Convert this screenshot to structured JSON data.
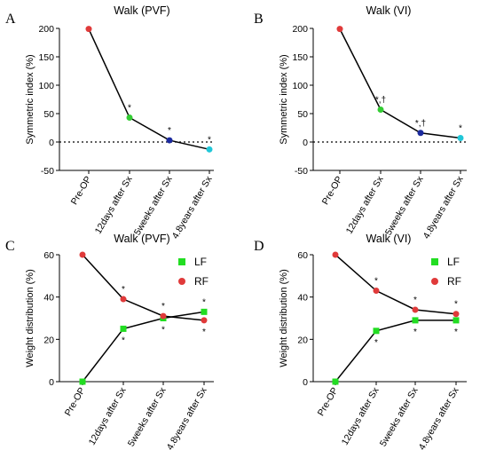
{
  "figure": {
    "panels": [
      "A",
      "B",
      "C",
      "D"
    ]
  },
  "chart_data": [
    {
      "panel": "A",
      "type": "line",
      "title": "Walk (PVF)",
      "ylabel": "Symmetric index (%)",
      "xlabel": "",
      "categories": [
        "Pre-OP",
        "12days after Sx",
        "5weeks after Sx",
        "4.8years after Sx"
      ],
      "ylim": [
        -50,
        200
      ],
      "yticks": [
        -50,
        0,
        50,
        100,
        150,
        200
      ],
      "zero_line": "dotted",
      "grid": false,
      "series": [
        {
          "values": [
            199,
            43,
            3,
            -13
          ],
          "point_colors": [
            "#e03a3a",
            "#33cc33",
            "#1b2a9e",
            "#20c7d8"
          ],
          "annotations": [
            "",
            "*",
            "*",
            "*"
          ]
        }
      ]
    },
    {
      "panel": "B",
      "type": "line",
      "title": "Walk (VI)",
      "ylabel": "Symmetric index (%)",
      "xlabel": "",
      "categories": [
        "Pre-OP",
        "12days after Sx",
        "5weeks after Sx",
        "4.8years after Sx"
      ],
      "ylim": [
        -50,
        200
      ],
      "yticks": [
        -50,
        0,
        50,
        100,
        150,
        200
      ],
      "zero_line": "dotted",
      "grid": false,
      "series": [
        {
          "values": [
            199,
            57,
            16,
            7
          ],
          "point_colors": [
            "#e03a3a",
            "#33cc33",
            "#1b2a9e",
            "#20c7d8"
          ],
          "annotations": [
            "",
            "*,†",
            "*,†",
            "*"
          ]
        }
      ]
    },
    {
      "panel": "C",
      "type": "line",
      "title": "Walk (PVF)",
      "ylabel": "Weight distribution (%)",
      "xlabel": "",
      "categories": [
        "Pre-OP",
        "12days after Sx",
        "5weeks after Sx",
        "4.8years after Sx"
      ],
      "ylim": [
        0,
        60
      ],
      "yticks": [
        0,
        20,
        40,
        60
      ],
      "grid": false,
      "legend_position": "top-right",
      "series": [
        {
          "name": "LF",
          "color": "#22dd22",
          "marker": "square",
          "values": [
            0,
            25,
            30,
            33
          ],
          "annotations": [
            "",
            "*",
            "*",
            "*"
          ]
        },
        {
          "name": "RF",
          "color": "#e03a3a",
          "marker": "circle",
          "values": [
            60,
            39,
            31,
            29
          ],
          "annotations": [
            "",
            "*",
            "*",
            "*"
          ]
        }
      ]
    },
    {
      "panel": "D",
      "type": "line",
      "title": "Walk (VI)",
      "ylabel": "Weight distribution (%)",
      "xlabel": "",
      "categories": [
        "Pre-OP",
        "12days after Sx",
        "5weeks after Sx",
        "4.8years after Sx"
      ],
      "ylim": [
        0,
        60
      ],
      "yticks": [
        0,
        20,
        40,
        60
      ],
      "grid": false,
      "legend_position": "top-right",
      "series": [
        {
          "name": "LF",
          "color": "#22dd22",
          "marker": "square",
          "values": [
            0,
            24,
            29,
            29
          ],
          "annotations": [
            "",
            "*",
            "*",
            "*"
          ]
        },
        {
          "name": "RF",
          "color": "#e03a3a",
          "marker": "circle",
          "values": [
            60,
            43,
            34,
            32
          ],
          "annotations": [
            "",
            "*",
            "*",
            "*"
          ]
        }
      ]
    }
  ]
}
